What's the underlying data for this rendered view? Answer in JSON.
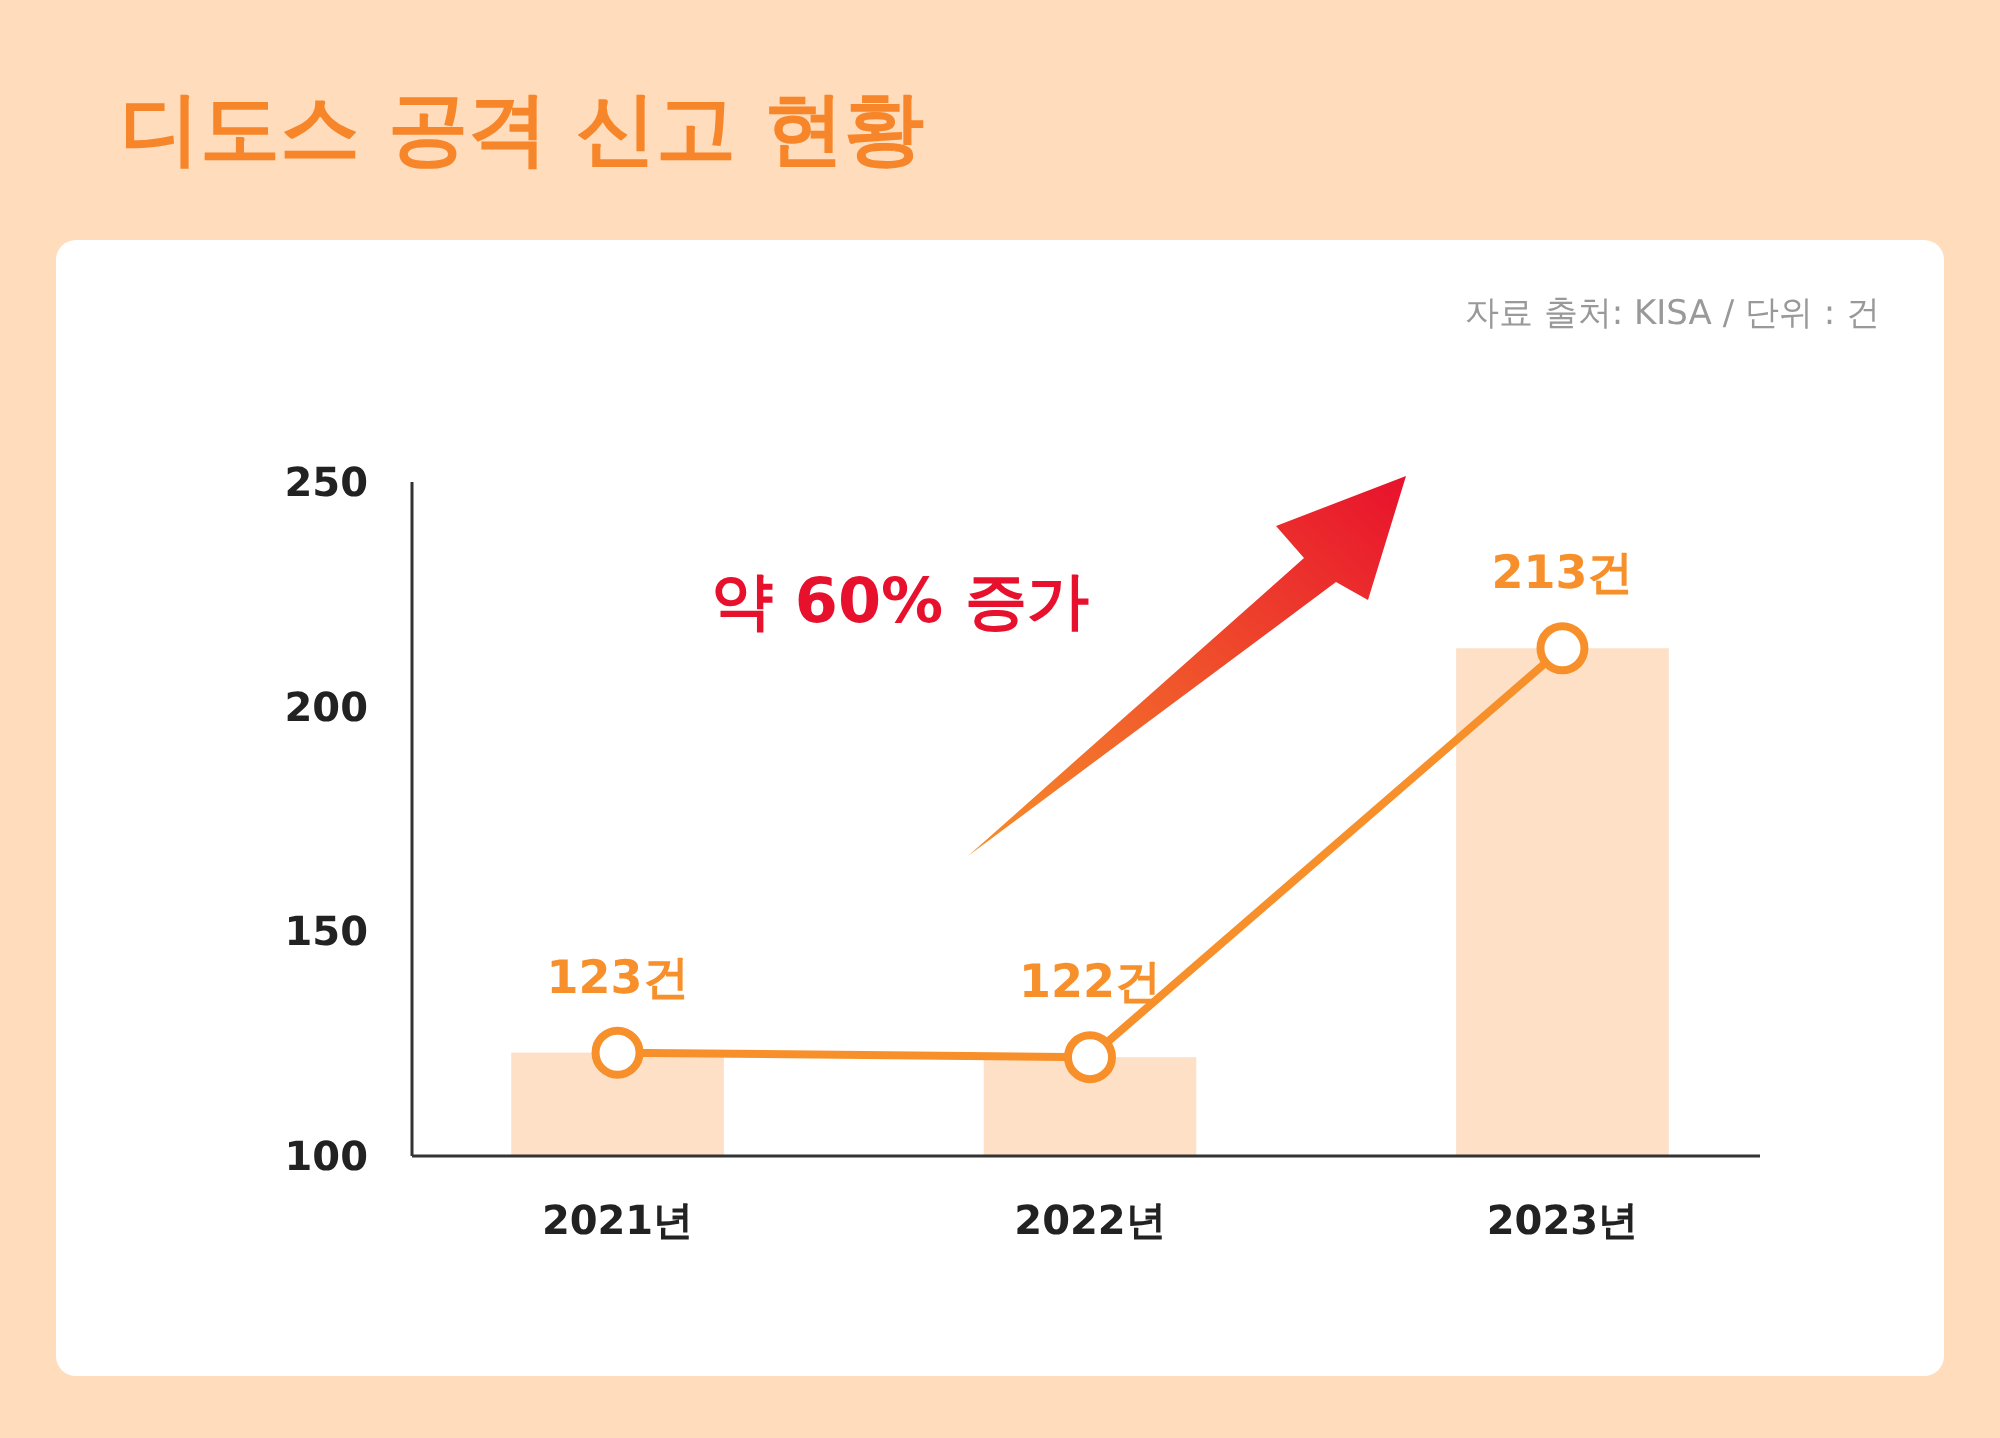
{
  "chart_data": {
    "type": "bar",
    "title": "디도스 공격 신고 현황",
    "categories": [
      "2021년",
      "2022년",
      "2023년"
    ],
    "series": [
      {
        "color": "#fde0c6",
        "values": [
          123,
          122,
          213
        ]
      },
      {
        "type": "line",
        "color": "#f7902a",
        "values": [
          123,
          122,
          213
        ],
        "value_labels": [
          "123건",
          "122건",
          "213건"
        ]
      }
    ],
    "ylim": [
      100,
      250
    ],
    "yticks": [
      100,
      150,
      200,
      250
    ],
    "grid": false,
    "marker": "circle",
    "line_style": "solid",
    "annotations": [
      "약 60% 증가",
      "자료 출처: KISA / 단위 : 건"
    ]
  }
}
